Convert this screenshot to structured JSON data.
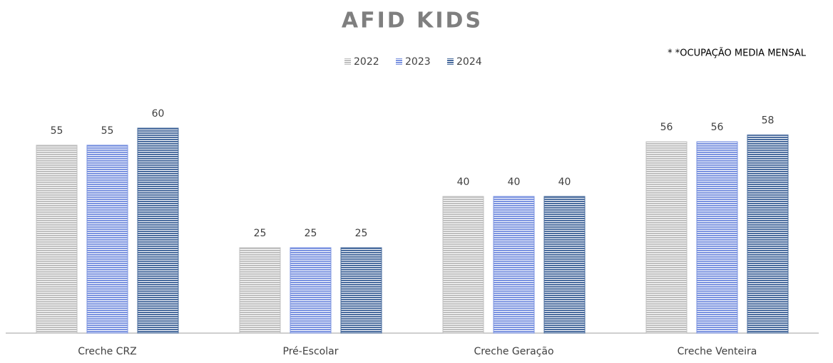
{
  "chart_data": {
    "type": "bar",
    "title": "AFID KIDS",
    "annotation": "* *OCUPAÇÃO MEDIA MENSAL",
    "categories": [
      "Creche CRZ",
      "Pré-Escolar",
      "Creche Geração",
      "Creche Venteira"
    ],
    "series": [
      {
        "name": "2022",
        "color": "#bfbfbf",
        "values": [
          55,
          25,
          40,
          56
        ]
      },
      {
        "name": "2023",
        "color": "#7b93e0",
        "values": [
          55,
          25,
          40,
          56
        ]
      },
      {
        "name": "2024",
        "color": "#4a6c9e",
        "values": [
          60,
          25,
          40,
          58
        ]
      }
    ],
    "ylim": [
      0,
      70
    ],
    "legend": "top"
  }
}
